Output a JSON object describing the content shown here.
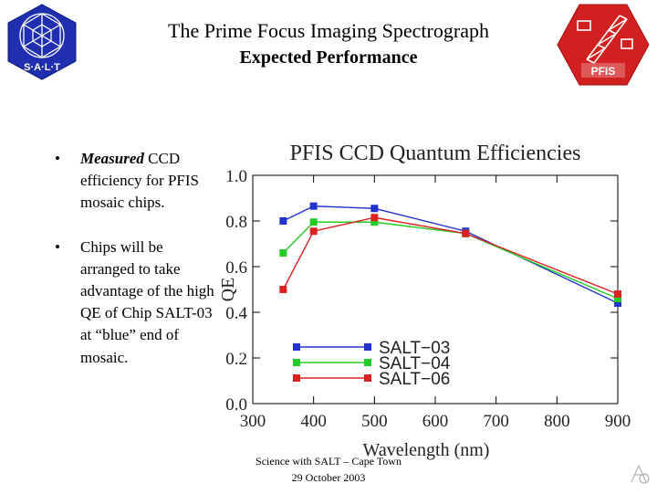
{
  "header": {
    "title": "The Prime Focus Imaging Spectrograph",
    "subtitle": "Expected Performance",
    "left_logo_text": "S·A·L·T",
    "right_logo_text": "PFIS"
  },
  "bullets": [
    {
      "emphasis": "Measured",
      "text": " CCD efficiency for PFIS mosaic chips."
    },
    {
      "emphasis": "",
      "text": "Chips will be arranged to take advantage of the high QE of Chip SALT-03 at “blue” end of mosaic."
    }
  ],
  "bullet_symbol": "•",
  "footer": {
    "line1": "Science with SALT – Cape Town",
    "line2": "29 October 2003"
  },
  "chart_data": {
    "type": "line",
    "title": "PFIS CCD Quantum Efficiencies",
    "xlabel": "Wavelength (nm)",
    "ylabel": "QE",
    "xlim": [
      300,
      900
    ],
    "ylim": [
      0.0,
      1.0
    ],
    "xticks": [
      300,
      400,
      500,
      600,
      700,
      800,
      900
    ],
    "yticks": [
      0.0,
      0.2,
      0.4,
      0.6,
      0.8,
      1.0
    ],
    "ytick_labels": [
      "0.0",
      "0.2",
      "0.4",
      "0.6",
      "0.8",
      "1.0"
    ],
    "grid": false,
    "legend_position": "bottom-left",
    "series": [
      {
        "name": "SALT−03",
        "color": "#2233cc",
        "x": [
          350,
          400,
          500,
          650,
          900
        ],
        "y": [
          0.8,
          0.865,
          0.855,
          0.755,
          0.44
        ]
      },
      {
        "name": "SALT−04",
        "color": "#22cc22",
        "x": [
          350,
          400,
          500,
          650,
          900
        ],
        "y": [
          0.66,
          0.795,
          0.795,
          0.745,
          0.46
        ]
      },
      {
        "name": "SALT−06",
        "color": "#dd2222",
        "x": [
          350,
          400,
          500,
          650,
          900
        ],
        "y": [
          0.5,
          0.755,
          0.815,
          0.745,
          0.48
        ]
      }
    ]
  }
}
